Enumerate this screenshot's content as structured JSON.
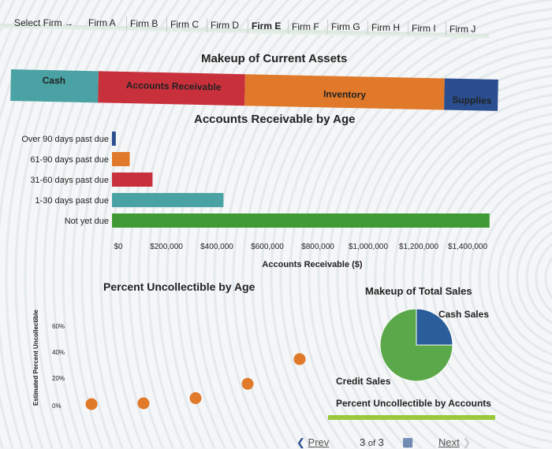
{
  "header": {
    "select_label": "Select Firm",
    "arrow": "→",
    "tabs": [
      "Firm A",
      "Firm B",
      "Firm C",
      "Firm D",
      "Firm E",
      "Firm F",
      "Firm G",
      "Firm H",
      "Firm I",
      "Firm J"
    ],
    "active_tab": "Firm E"
  },
  "assets": {
    "title": "Makeup of Current Assets",
    "segments": [
      {
        "label": "Cash",
        "color": "#4aa2a4",
        "value": 0.18
      },
      {
        "label": "Accounts Receivable",
        "color": "#c8303c",
        "value": 0.3
      },
      {
        "label": "Inventory",
        "color": "#e0792a",
        "value": 0.41
      },
      {
        "label": "Supplies",
        "color": "#2a4e8f",
        "value": 0.11
      }
    ]
  },
  "nav": {
    "prev": "Prev",
    "page": "3",
    "of": "of",
    "total": "3",
    "next": "Next"
  },
  "chart_data": [
    {
      "type": "bar",
      "orientation": "horizontal",
      "title": "Accounts Receivable by Age",
      "xlabel": "Accounts Receivable ($)",
      "categories": [
        "Over 90 days past due",
        "61-90 days past due",
        "31-60 days past due",
        "1-30 days past due",
        "Not yet due"
      ],
      "values": [
        15000,
        70000,
        160000,
        440000,
        1490000
      ],
      "colors": [
        "#2a4e8f",
        "#e0792a",
        "#c8303c",
        "#4aa2a4",
        "#3f9a35"
      ],
      "xlim": [
        0,
        1500000
      ],
      "xticks": [
        "$0",
        "$200,000",
        "$400,000",
        "$600,000",
        "$800,000",
        "$1,000,000",
        "$1,200,000",
        "$1,400,000"
      ]
    },
    {
      "type": "scatter",
      "title": "Percent Uncollectible by Age",
      "ylabel": "Estimated Percent Uncollectible",
      "yticks": [
        "0%",
        "20%",
        "40%",
        "60%"
      ],
      "ylim": [
        0,
        80
      ],
      "points": [
        {
          "x": 1,
          "y": 0
        },
        {
          "x": 2,
          "y": 0
        },
        {
          "x": 3,
          "y": 4
        },
        {
          "x": 4,
          "y": 15
        },
        {
          "x": 5,
          "y": 34
        }
      ],
      "color": "#e0792a"
    },
    {
      "type": "pie",
      "title": "Makeup of Total Sales",
      "slices": [
        {
          "label": "Cash Sales",
          "value": 25,
          "color": "#2a5d9a"
        },
        {
          "label": "Credit Sales",
          "value": 75,
          "color": "#5aa84a"
        }
      ]
    },
    {
      "type": "bar",
      "title": "Percent Uncollectible by Accounts",
      "color": "#9ac83a"
    }
  ]
}
